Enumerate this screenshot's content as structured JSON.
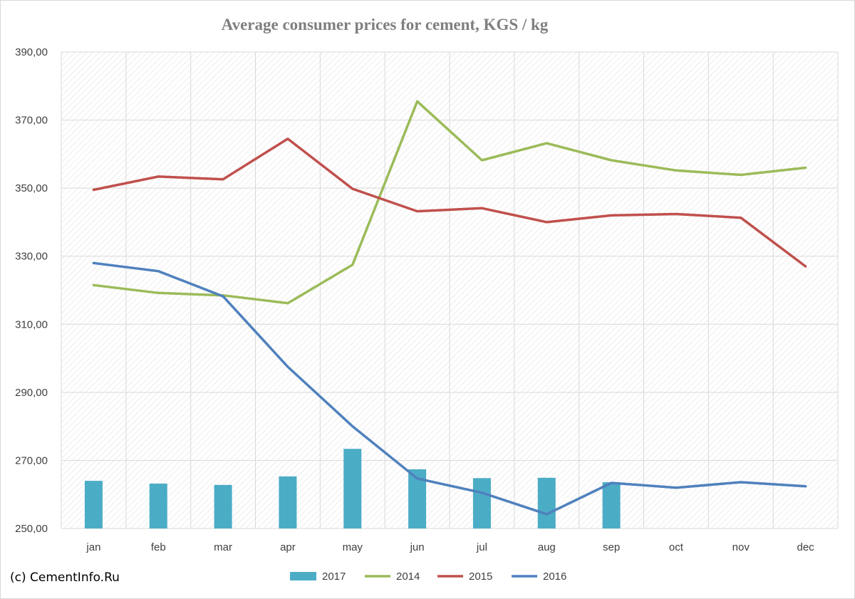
{
  "chart_data": {
    "type": "bar+line",
    "title": "Average consumer prices for cement, KGS / kg",
    "source_note": "(c) CementInfo.Ru",
    "categories": [
      "jan",
      "feb",
      "mar",
      "apr",
      "may",
      "jun",
      "jul",
      "aug",
      "sep",
      "oct",
      "nov",
      "dec"
    ],
    "ylim": [
      250,
      390
    ],
    "yticks": [
      "250,00",
      "270,00",
      "290,00",
      "310,00",
      "330,00",
      "350,00",
      "370,00",
      "390,00"
    ],
    "grid": true,
    "legend_position": "bottom",
    "series": [
      {
        "name": "2017",
        "kind": "bar",
        "color": "#4bacc6",
        "values": [
          264.0,
          263.2,
          262.8,
          265.3,
          273.4,
          267.4,
          264.8,
          264.9,
          263.6,
          null,
          null,
          null
        ]
      },
      {
        "name": "2014",
        "kind": "line",
        "color": "#9bbb59",
        "values": [
          321.5,
          319.2,
          318.5,
          316.2,
          327.5,
          375.5,
          358.2,
          363.2,
          358.2,
          355.2,
          353.9,
          356.0
        ]
      },
      {
        "name": "2015",
        "kind": "line",
        "color": "#c0504d",
        "values": [
          349.5,
          353.4,
          352.6,
          364.5,
          349.8,
          343.2,
          344.1,
          340.0,
          342.0,
          342.4,
          341.3,
          327.0
        ]
      },
      {
        "name": "2016",
        "kind": "line",
        "color": "#4f81bd",
        "values": [
          328.0,
          325.6,
          318.2,
          297.5,
          280.0,
          264.7,
          260.5,
          254.2,
          263.4,
          262.0,
          263.6,
          262.4
        ]
      }
    ]
  }
}
